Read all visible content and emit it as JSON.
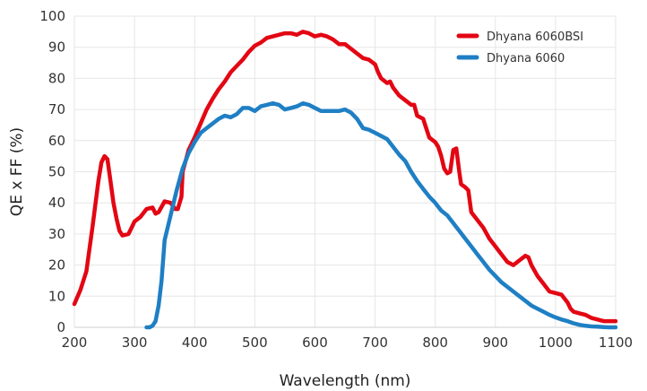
{
  "chart_data": {
    "type": "line",
    "title": "",
    "xlabel": "Wavelength (nm)",
    "ylabel": "QE x FF (%)",
    "xlim": [
      200,
      1100
    ],
    "ylim": [
      0,
      100
    ],
    "xticks": [
      200,
      300,
      400,
      500,
      600,
      700,
      800,
      900,
      1000,
      1100
    ],
    "yticks": [
      0,
      10,
      20,
      30,
      40,
      50,
      60,
      70,
      80,
      90,
      100
    ],
    "grid": true,
    "legend": "top-right",
    "series": [
      {
        "name": "Dhyana 6060BSI",
        "color": "#e30613",
        "points": [
          [
            200,
            7.5
          ],
          [
            210,
            12
          ],
          [
            220,
            18
          ],
          [
            230,
            32
          ],
          [
            240,
            47
          ],
          [
            245,
            53
          ],
          [
            250,
            55
          ],
          [
            255,
            54
          ],
          [
            260,
            47
          ],
          [
            265,
            40
          ],
          [
            270,
            35
          ],
          [
            275,
            31
          ],
          [
            280,
            29.5
          ],
          [
            290,
            30
          ],
          [
            295,
            32
          ],
          [
            300,
            34
          ],
          [
            310,
            35.5
          ],
          [
            320,
            38
          ],
          [
            330,
            38.5
          ],
          [
            335,
            36.5
          ],
          [
            340,
            37
          ],
          [
            350,
            40.5
          ],
          [
            360,
            40
          ],
          [
            368,
            38
          ],
          [
            372,
            38
          ],
          [
            378,
            42
          ],
          [
            380,
            50
          ],
          [
            390,
            57
          ],
          [
            400,
            61
          ],
          [
            410,
            65.5
          ],
          [
            420,
            70
          ],
          [
            430,
            73.5
          ],
          [
            440,
            76.5
          ],
          [
            450,
            79
          ],
          [
            460,
            82
          ],
          [
            470,
            84
          ],
          [
            480,
            86
          ],
          [
            490,
            88.5
          ],
          [
            500,
            90.5
          ],
          [
            510,
            91.5
          ],
          [
            520,
            93
          ],
          [
            530,
            93.5
          ],
          [
            540,
            94
          ],
          [
            550,
            94.5
          ],
          [
            560,
            94.5
          ],
          [
            570,
            94
          ],
          [
            580,
            95
          ],
          [
            590,
            94.5
          ],
          [
            600,
            93.5
          ],
          [
            610,
            94
          ],
          [
            620,
            93.5
          ],
          [
            630,
            92.5
          ],
          [
            640,
            91
          ],
          [
            650,
            91
          ],
          [
            660,
            89.5
          ],
          [
            670,
            88
          ],
          [
            680,
            86.5
          ],
          [
            690,
            86
          ],
          [
            700,
            84.5
          ],
          [
            705,
            82
          ],
          [
            710,
            80
          ],
          [
            720,
            78.5
          ],
          [
            725,
            79
          ],
          [
            730,
            77
          ],
          [
            740,
            74.5
          ],
          [
            750,
            73
          ],
          [
            760,
            71.5
          ],
          [
            765,
            71.5
          ],
          [
            770,
            68
          ],
          [
            780,
            67
          ],
          [
            790,
            61
          ],
          [
            800,
            59.5
          ],
          [
            805,
            58
          ],
          [
            810,
            55
          ],
          [
            815,
            51
          ],
          [
            820,
            49.5
          ],
          [
            825,
            50
          ],
          [
            830,
            57
          ],
          [
            835,
            57.5
          ],
          [
            840,
            50
          ],
          [
            843,
            46
          ],
          [
            850,
            45
          ],
          [
            855,
            44
          ],
          [
            860,
            37
          ],
          [
            870,
            34.5
          ],
          [
            880,
            32
          ],
          [
            890,
            28.5
          ],
          [
            900,
            26
          ],
          [
            910,
            23.5
          ],
          [
            920,
            21
          ],
          [
            930,
            20
          ],
          [
            940,
            21.5
          ],
          [
            950,
            23
          ],
          [
            955,
            22.5
          ],
          [
            960,
            20
          ],
          [
            970,
            16.5
          ],
          [
            980,
            14
          ],
          [
            990,
            11.5
          ],
          [
            1000,
            11
          ],
          [
            1010,
            10.5
          ],
          [
            1020,
            8
          ],
          [
            1025,
            6
          ],
          [
            1030,
            5
          ],
          [
            1040,
            4.5
          ],
          [
            1050,
            4
          ],
          [
            1060,
            3
          ],
          [
            1070,
            2.5
          ],
          [
            1080,
            2
          ],
          [
            1090,
            2
          ],
          [
            1100,
            2
          ]
        ]
      },
      {
        "name": "Dhyana 6060",
        "color": "#1f7fc4",
        "points": [
          [
            320,
            0
          ],
          [
            325,
            0
          ],
          [
            330,
            0.5
          ],
          [
            335,
            2
          ],
          [
            340,
            7
          ],
          [
            345,
            15
          ],
          [
            350,
            28
          ],
          [
            360,
            36
          ],
          [
            370,
            44
          ],
          [
            380,
            51
          ],
          [
            390,
            56
          ],
          [
            400,
            59.5
          ],
          [
            410,
            62.5
          ],
          [
            420,
            64
          ],
          [
            430,
            65.5
          ],
          [
            440,
            67
          ],
          [
            450,
            68
          ],
          [
            460,
            67.5
          ],
          [
            470,
            68.5
          ],
          [
            480,
            70.5
          ],
          [
            490,
            70.5
          ],
          [
            500,
            69.5
          ],
          [
            510,
            71
          ],
          [
            520,
            71.5
          ],
          [
            530,
            72
          ],
          [
            540,
            71.5
          ],
          [
            550,
            70
          ],
          [
            560,
            70.5
          ],
          [
            570,
            71
          ],
          [
            580,
            72
          ],
          [
            590,
            71.5
          ],
          [
            600,
            70.5
          ],
          [
            610,
            69.5
          ],
          [
            620,
            69.5
          ],
          [
            630,
            69.5
          ],
          [
            640,
            69.5
          ],
          [
            650,
            70
          ],
          [
            660,
            69
          ],
          [
            670,
            67
          ],
          [
            680,
            64
          ],
          [
            690,
            63.5
          ],
          [
            700,
            62.5
          ],
          [
            710,
            61.5
          ],
          [
            720,
            60.5
          ],
          [
            730,
            58
          ],
          [
            740,
            55.5
          ],
          [
            750,
            53.5
          ],
          [
            760,
            50
          ],
          [
            770,
            47
          ],
          [
            780,
            44.5
          ],
          [
            790,
            42
          ],
          [
            800,
            40
          ],
          [
            810,
            37.5
          ],
          [
            820,
            36
          ],
          [
            830,
            33.5
          ],
          [
            840,
            31
          ],
          [
            850,
            28.5
          ],
          [
            860,
            26
          ],
          [
            870,
            23.5
          ],
          [
            880,
            21
          ],
          [
            890,
            18.5
          ],
          [
            900,
            16.5
          ],
          [
            910,
            14.5
          ],
          [
            920,
            13
          ],
          [
            930,
            11.5
          ],
          [
            940,
            10
          ],
          [
            950,
            8.5
          ],
          [
            960,
            7
          ],
          [
            970,
            6
          ],
          [
            980,
            5
          ],
          [
            990,
            4
          ],
          [
            1000,
            3.2
          ],
          [
            1010,
            2.5
          ],
          [
            1020,
            2
          ],
          [
            1030,
            1.3
          ],
          [
            1040,
            0.8
          ],
          [
            1050,
            0.5
          ],
          [
            1060,
            0.3
          ],
          [
            1070,
            0.2
          ],
          [
            1080,
            0.1
          ],
          [
            1090,
            0
          ],
          [
            1100,
            0
          ]
        ]
      }
    ]
  }
}
